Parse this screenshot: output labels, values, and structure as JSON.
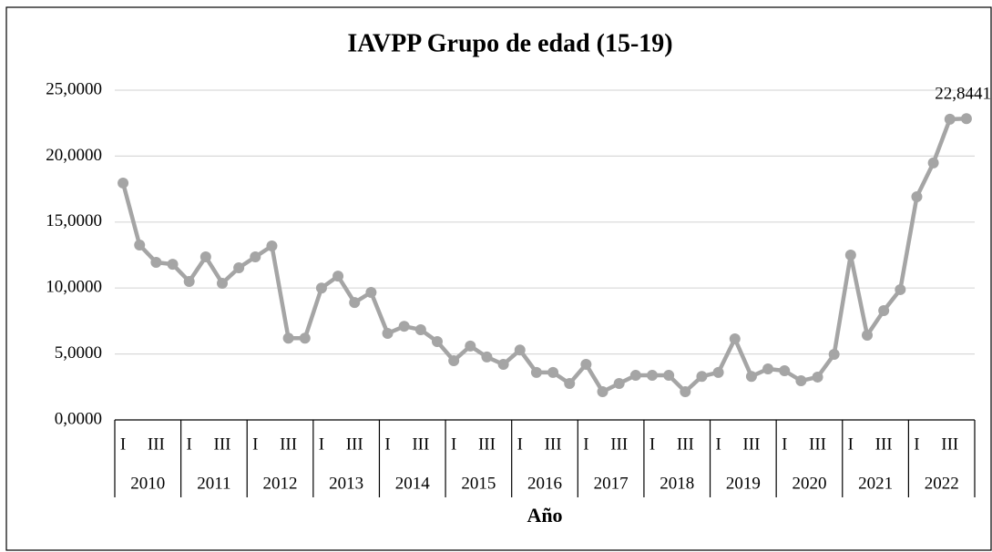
{
  "chart_data": {
    "type": "line",
    "title": "IAVPP Grupo de edad (15-19)",
    "x_label": "Año",
    "categories": [
      "I",
      null,
      "III",
      null,
      "I",
      null,
      "III",
      null,
      "I",
      null,
      "III",
      null,
      "I",
      null,
      "III",
      null,
      "I",
      null,
      "III",
      null,
      "I",
      null,
      "III",
      null,
      "I",
      null,
      "III",
      null,
      "I",
      null,
      "III",
      null,
      "I",
      null,
      "III",
      null,
      "I",
      null,
      "III",
      null,
      "I",
      null,
      "III",
      null,
      "I",
      null,
      "III",
      null,
      "I",
      null,
      "III",
      null
    ],
    "years": [
      "2010",
      "2011",
      "2012",
      "2013",
      "2014",
      "2015",
      "2016",
      "2017",
      "2018",
      "2019",
      "2020",
      "2021",
      "2022"
    ],
    "series": [
      {
        "name": "IAVPP",
        "color": "#a5a5a5",
        "values": [
          17.96,
          13.26,
          11.95,
          11.8,
          10.5,
          12.36,
          10.36,
          11.53,
          12.36,
          13.19,
          6.2,
          6.2,
          10.0,
          10.9,
          8.9,
          9.67,
          6.56,
          7.1,
          6.84,
          5.94,
          4.49,
          5.6,
          4.77,
          4.21,
          5.3,
          3.6,
          3.6,
          2.76,
          4.21,
          2.14,
          2.76,
          3.38,
          3.38,
          3.38,
          2.14,
          3.3,
          3.6,
          6.15,
          3.3,
          3.87,
          3.73,
          2.97,
          3.25,
          4.97,
          12.5,
          6.42,
          8.29,
          9.88,
          16.92,
          19.48,
          22.8,
          22.8441
        ],
        "value_labels": [
          null,
          null,
          null,
          null,
          null,
          null,
          null,
          null,
          null,
          null,
          null,
          null,
          null,
          null,
          null,
          null,
          null,
          null,
          null,
          null,
          null,
          null,
          null,
          null,
          null,
          null,
          null,
          null,
          null,
          null,
          null,
          null,
          null,
          null,
          null,
          null,
          null,
          null,
          null,
          null,
          null,
          null,
          null,
          null,
          null,
          null,
          null,
          null,
          null,
          null,
          null,
          "22,8441"
        ]
      }
    ],
    "ylim": [
      0,
      25
    ],
    "yticks": [
      {
        "value": 0,
        "label": "0,0000"
      },
      {
        "value": 5,
        "label": "5,0000"
      },
      {
        "value": 10,
        "label": "10,0000"
      },
      {
        "value": 15,
        "label": "15,0000"
      },
      {
        "value": 20,
        "label": "20,0000"
      },
      {
        "value": 25,
        "label": "25,0000"
      }
    ],
    "grid": true
  }
}
